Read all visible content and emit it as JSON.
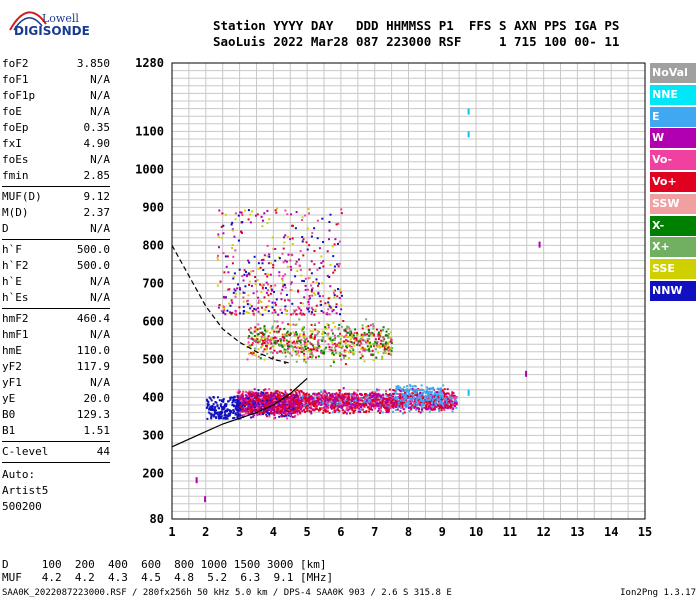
{
  "logo": {
    "line1": "Lowell",
    "line2": "DIGISONDE"
  },
  "header": {
    "row1": "Station YYYY DAY   DDD HHMMSS P1  FFS S AXN PPS IGA PS",
    "row2": "SaoLuis 2022 Mar28 087 223000 RSF     1 715 100 00- 11"
  },
  "params": {
    "group1": [
      {
        "name": "foF2",
        "value": "3.850"
      },
      {
        "name": "foF1",
        "value": "N/A"
      },
      {
        "name": "foF1p",
        "value": "N/A"
      },
      {
        "name": "foE",
        "value": "N/A"
      },
      {
        "name": "foEp",
        "value": "0.35"
      },
      {
        "name": "fxI",
        "value": "4.90"
      },
      {
        "name": "foEs",
        "value": "N/A"
      },
      {
        "name": "fmin",
        "value": "2.85"
      }
    ],
    "group2": [
      {
        "name": "MUF(D)",
        "value": "9.12"
      },
      {
        "name": "M(D)",
        "value": "2.37"
      },
      {
        "name": "D",
        "value": "N/A"
      }
    ],
    "group3": [
      {
        "name": "h`F",
        "value": "500.0"
      },
      {
        "name": "h`F2",
        "value": "500.0"
      },
      {
        "name": "h`E",
        "value": "N/A"
      },
      {
        "name": "h`Es",
        "value": "N/A"
      }
    ],
    "group4": [
      {
        "name": "hmF2",
        "value": "460.4"
      },
      {
        "name": "hmF1",
        "value": "N/A"
      },
      {
        "name": "hmE",
        "value": "110.0"
      },
      {
        "name": "yF2",
        "value": "117.9"
      },
      {
        "name": "yF1",
        "value": "N/A"
      },
      {
        "name": "yE",
        "value": "20.0"
      },
      {
        "name": "B0",
        "value": "129.3"
      },
      {
        "name": "B1",
        "value": "1.51"
      }
    ],
    "group5": [
      {
        "name": "C-level",
        "value": "44"
      }
    ],
    "auto": [
      "Auto:",
      "Artist5",
      "500200"
    ]
  },
  "legend": [
    {
      "label": "NoVal",
      "color": "#a0a0a0"
    },
    {
      "label": "NNE",
      "color": "#00e8f8"
    },
    {
      "label": "E",
      "color": "#40a8f0"
    },
    {
      "label": "W",
      "color": "#b000b0"
    },
    {
      "label": "Vo-",
      "color": "#f040a0"
    },
    {
      "label": "Vo+",
      "color": "#e00020"
    },
    {
      "label": "SSW",
      "color": "#f0a0a0"
    },
    {
      "label": "X-",
      "color": "#008000"
    },
    {
      "label": "X+",
      "color": "#70b060"
    },
    {
      "label": "SSE",
      "color": "#d0d000"
    },
    {
      "label": "NNW",
      "color": "#1010c0"
    }
  ],
  "chart_data": {
    "type": "scatter",
    "xlim": [
      1,
      15
    ],
    "ylim": [
      80,
      1280
    ],
    "x_ticks": [
      1,
      2,
      3,
      4,
      5,
      6,
      7,
      8,
      9,
      10,
      11,
      12,
      13,
      14,
      15
    ],
    "y_ticks": [
      80,
      200,
      300,
      400,
      500,
      600,
      700,
      800,
      900,
      1000,
      1100,
      1280
    ],
    "grid": true,
    "ionogram_regions": [
      {
        "desc": "lower trace",
        "x": [
          2.9,
          4.7
        ],
        "y": [
          340,
          430
        ],
        "color_mix": [
          "#e00020",
          "#b000b0",
          "#f040a0",
          "#1010c0"
        ]
      },
      {
        "desc": "F2 trace",
        "x": [
          4.7,
          9.4
        ],
        "y": [
          355,
          430
        ],
        "color_mix": [
          "#e00020",
          "#f040a0",
          "#40a8f0",
          "#b000b0"
        ]
      },
      {
        "desc": "upper trace",
        "x": [
          3.2,
          7.5
        ],
        "y": [
          480,
          620
        ],
        "color_mix": [
          "#008000",
          "#f040a0",
          "#e00020",
          "#d0d000",
          "#70b060"
        ]
      },
      {
        "desc": "scattered",
        "x": [
          2.3,
          6.0
        ],
        "y": [
          620,
          900
        ],
        "color_mix": [
          "#e00020",
          "#1010c0",
          "#f040a0",
          "#b000b0",
          "#d0d000"
        ]
      }
    ],
    "dashed_curve": [
      [
        1,
        800
      ],
      [
        1.5,
        720
      ],
      [
        2.0,
        640
      ],
      [
        2.5,
        580
      ],
      [
        3.0,
        545
      ],
      [
        3.5,
        520
      ],
      [
        4.0,
        500
      ],
      [
        4.5,
        490
      ]
    ],
    "solid_curve": [
      [
        1,
        270
      ],
      [
        1.5,
        290
      ],
      [
        2.0,
        310
      ],
      [
        2.5,
        330
      ],
      [
        3.0,
        345
      ],
      [
        3.5,
        360
      ],
      [
        4.0,
        380
      ],
      [
        4.5,
        410
      ],
      [
        5.0,
        450
      ]
    ],
    "isolated_points": [
      [
        9.75,
        1160
      ],
      [
        9.75,
        1100
      ],
      [
        9.75,
        420
      ],
      [
        11.85,
        810
      ],
      [
        11.45,
        470
      ],
      [
        1.7,
        190
      ],
      [
        1.95,
        140
      ]
    ]
  },
  "footer": {
    "row1": "D     100  200  400  600  800 1000 1500 3000 [km]",
    "row2": "MUF   4.2  4.2  4.3  4.5  4.8  5.2  6.3  9.1 [MHz]",
    "info": "SAA0K_2022087223000.RSF / 280fx256h 50 kHz 5.0 km / DPS-4 SAA0K 903 / 2.6 S 315.8 E",
    "version": "Ion2Png 1.3.17"
  }
}
